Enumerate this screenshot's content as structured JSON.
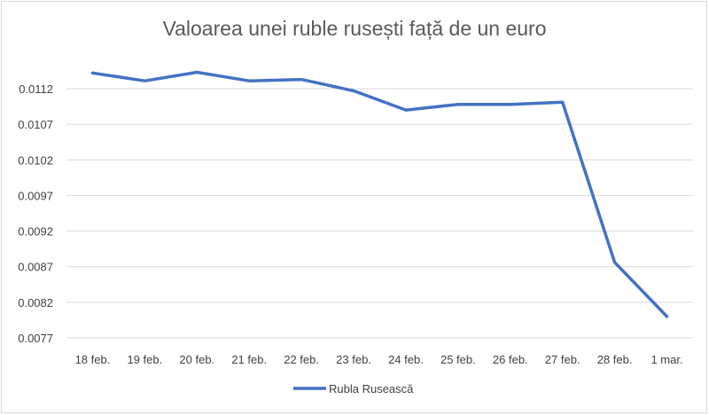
{
  "chart_data": {
    "type": "line",
    "title": "Valoarea unei ruble rusești față de un euro",
    "xlabel": "",
    "ylabel": "",
    "categories": [
      "18 feb.",
      "19 feb.",
      "20 feb.",
      "21 feb.",
      "22 feb.",
      "23 feb.",
      "24 feb.",
      "25 feb.",
      "26 feb.",
      "27 feb.",
      "28 feb.",
      "1 mar."
    ],
    "series": [
      {
        "name": "Rubla Rusească",
        "color": "#4472c4",
        "values": [
          0.01142,
          0.01131,
          0.01143,
          0.01131,
          0.01133,
          0.01117,
          0.0109,
          0.01098,
          0.01098,
          0.01101,
          0.00876,
          0.008
        ]
      }
    ],
    "y_ticks": [
      "0.0077",
      "0.0082",
      "0.0087",
      "0.0092",
      "0.0097",
      "0.0102",
      "0.0107",
      "0.0112"
    ],
    "ylim": [
      0.0077,
      0.0112
    ],
    "grid": true,
    "legend_position": "bottom"
  }
}
